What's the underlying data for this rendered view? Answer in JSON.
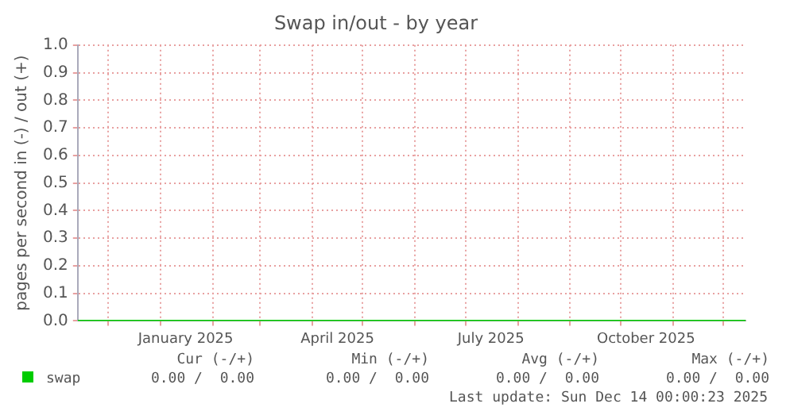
{
  "chart_data": {
    "type": "line",
    "title": "Swap in/out - by year",
    "ylabel": "pages per second in (-) / out (+)",
    "xlim": [
      "2024-11-13",
      "2025-12-14"
    ],
    "xticks": [
      {
        "value": "2024-12-01",
        "label": null
      },
      {
        "value": "2025-01-01",
        "label": null
      },
      {
        "value": "2025-01-16",
        "label": "January 2025"
      },
      {
        "value": "2025-02-01",
        "label": null
      },
      {
        "value": "2025-03-01",
        "label": null
      },
      {
        "value": "2025-04-01",
        "label": null
      },
      {
        "value": "2025-04-16",
        "label": "April 2025"
      },
      {
        "value": "2025-05-01",
        "label": null
      },
      {
        "value": "2025-06-01",
        "label": null
      },
      {
        "value": "2025-07-01",
        "label": null
      },
      {
        "value": "2025-07-16",
        "label": "July 2025"
      },
      {
        "value": "2025-08-01",
        "label": null
      },
      {
        "value": "2025-09-01",
        "label": null
      },
      {
        "value": "2025-10-01",
        "label": null
      },
      {
        "value": "2025-10-16",
        "label": "October 2025"
      },
      {
        "value": "2025-11-01",
        "label": null
      },
      {
        "value": "2025-12-01",
        "label": null
      }
    ],
    "ylim": [
      0,
      1
    ],
    "yticks": [
      {
        "value": 0,
        "label": "0.0"
      },
      {
        "value": 0.1,
        "label": "0.1"
      },
      {
        "value": 0.2,
        "label": "0.2"
      },
      {
        "value": 0.3,
        "label": "0.3"
      },
      {
        "value": 0.4,
        "label": "0.4"
      },
      {
        "value": 0.5,
        "label": "0.5"
      },
      {
        "value": 0.6,
        "label": "0.6"
      },
      {
        "value": 0.7,
        "label": "0.7"
      },
      {
        "value": 0.8,
        "label": "0.8"
      },
      {
        "value": 0.9,
        "label": "0.9"
      },
      {
        "value": 1,
        "label": "1.0"
      }
    ],
    "grid": true,
    "legend": "bottom",
    "marker": "none",
    "line_style": "solid",
    "x": [
      "2024-11-13",
      "2025-12-14"
    ],
    "series": [
      {
        "name": "swap",
        "color": "#00cc00",
        "values": [
          0,
          0
        ]
      }
    ],
    "annotations": [
      "Cur (-/+)",
      "Min (-/+)",
      "Avg (-/+)",
      "Max (-/+)",
      "0.00 /  0.00",
      "0.00 /  0.00",
      "0.00 /  0.00",
      "0.00 /  0.00",
      "Last update: Sun Dec 14 00:00:23 2025"
    ]
  }
}
